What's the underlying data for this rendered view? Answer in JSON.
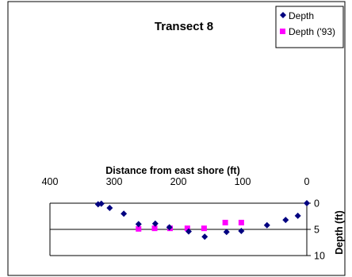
{
  "chart_data": {
    "type": "scatter",
    "title": "Transect 8",
    "xlabel": "Distance from east shore (ft)",
    "ylabel": "Depth (ft)",
    "xlim": [
      400,
      0
    ],
    "ylim": [
      0,
      10
    ],
    "x_ticks": [
      "400",
      "300",
      "200",
      "100",
      "0"
    ],
    "y_ticks": [
      "0",
      "5",
      "10"
    ],
    "x_tick_values": [
      400,
      300,
      200,
      100,
      0
    ],
    "y_tick_values": [
      0,
      5,
      10
    ],
    "y_gridlines": [
      0,
      5
    ],
    "legend_position": "top-right",
    "series": [
      {
        "name": "Depth",
        "marker": "diamond",
        "color": "#000080",
        "points": [
          [
            0,
            0
          ],
          [
            320,
            0.1
          ],
          [
            325,
            0.2
          ],
          [
            307,
            0.9
          ],
          [
            285,
            2.0
          ],
          [
            262,
            4.0
          ],
          [
            236,
            3.9
          ],
          [
            214,
            4.6
          ],
          [
            184,
            5.4
          ],
          [
            159,
            6.4
          ],
          [
            125,
            5.5
          ],
          [
            102,
            5.3
          ],
          [
            62,
            4.2
          ],
          [
            33,
            3.2
          ],
          [
            14,
            2.4
          ]
        ]
      },
      {
        "name": "Depth ('93)",
        "marker": "square",
        "color": "#FF00FF",
        "points": [
          [
            262,
            4.9
          ],
          [
            237,
            4.8
          ],
          [
            213,
            4.8
          ],
          [
            186,
            4.8
          ],
          [
            160,
            4.8
          ],
          [
            127,
            3.7
          ],
          [
            102,
            3.7
          ]
        ]
      }
    ]
  }
}
